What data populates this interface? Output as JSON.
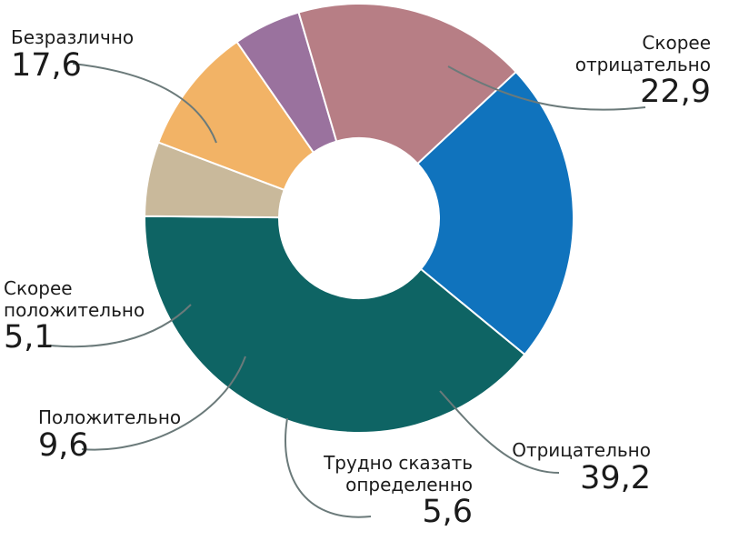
{
  "chart_data": {
    "type": "pie",
    "donut": true,
    "title": "",
    "slices": [
      {
        "label": "Скорее отрицательно",
        "label_lines": [
          "Скорее",
          "отрицательно"
        ],
        "value": 22.9,
        "display": "22,9",
        "color": "#1073bd"
      },
      {
        "label": "Отрицательно",
        "label_lines": [
          "Отрицательно"
        ],
        "value": 39.2,
        "display": "39,2",
        "color": "#0e6464"
      },
      {
        "label": "Трудно сказать определенно",
        "label_lines": [
          "Трудно сказать",
          "определенно"
        ],
        "value": 5.6,
        "display": "5,6",
        "color": "#c9b99b"
      },
      {
        "label": "Положительно",
        "label_lines": [
          "Положительно"
        ],
        "value": 9.6,
        "display": "9,6",
        "color": "#f2b366"
      },
      {
        "label": "Скорее положительно",
        "label_lines": [
          "Скорее",
          "положительно"
        ],
        "value": 5.1,
        "display": "5,1",
        "color": "#9a729e"
      },
      {
        "label": "Безразлично",
        "label_lines": [
          "Безразлично"
        ],
        "value": 17.6,
        "display": "17,6",
        "color": "#b77e85"
      }
    ],
    "leader_color": "#6b7a7a"
  }
}
